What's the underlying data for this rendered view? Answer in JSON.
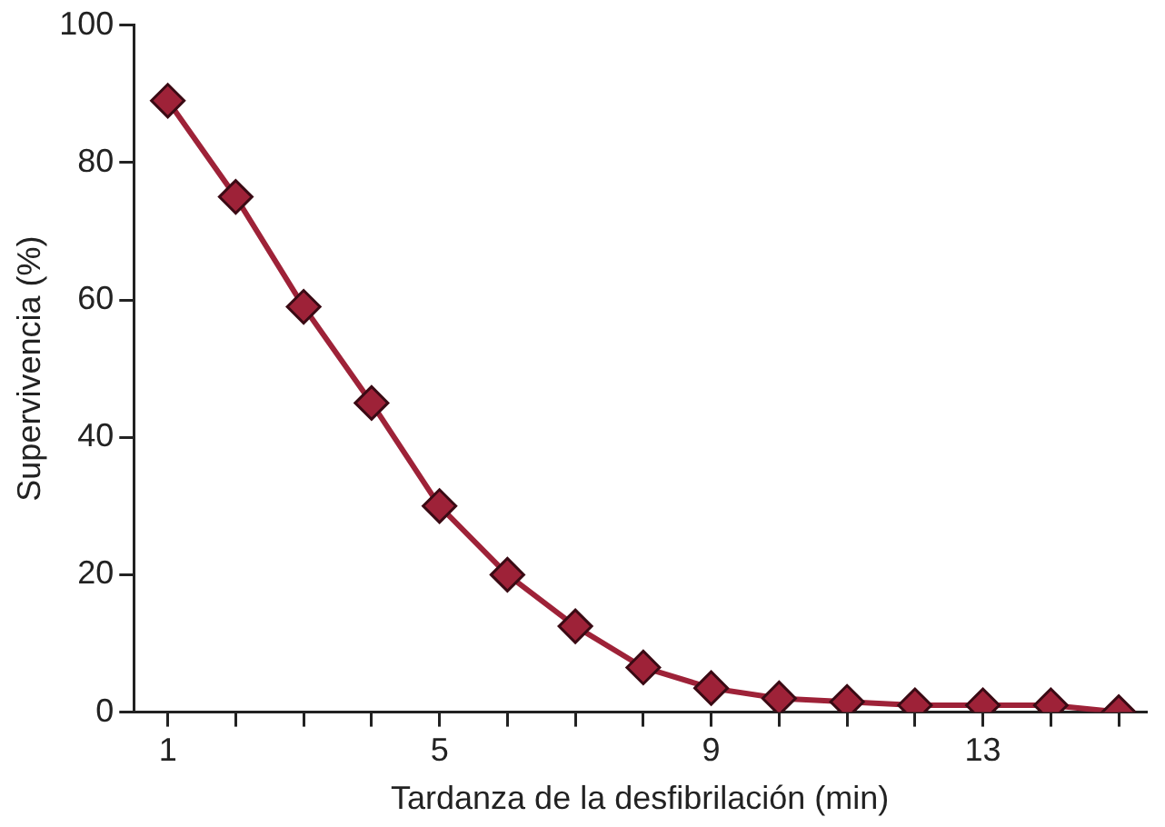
{
  "chart_data": {
    "type": "line",
    "xlabel": "Tardanza de la desfibrilación (min)",
    "ylabel": "Supervivencia (%)",
    "x": [
      1,
      2,
      3,
      4,
      5,
      6,
      7,
      8,
      9,
      10,
      11,
      12,
      13,
      14,
      15
    ],
    "series": [
      {
        "color": "#9e2238",
        "values": [
          89,
          75,
          59,
          45,
          30,
          20,
          12.5,
          6.5,
          3.5,
          2,
          1.5,
          1,
          1,
          1,
          0
        ]
      }
    ],
    "xlim": [
      0.5,
      15.4
    ],
    "xticks": [
      1,
      {
        "value": 2,
        "label": null
      },
      {
        "value": 3,
        "label": null
      },
      {
        "value": 4,
        "label": null
      },
      5,
      {
        "value": 6,
        "label": null
      },
      {
        "value": 7,
        "label": null
      },
      {
        "value": 8,
        "label": null
      },
      9,
      {
        "value": 10,
        "label": null
      },
      {
        "value": 11,
        "label": null
      },
      {
        "value": 12,
        "label": null
      },
      13,
      {
        "value": 14,
        "label": null
      },
      {
        "value": 15,
        "label": null
      }
    ],
    "ylim": [
      0,
      100
    ],
    "yticks": [
      0,
      20,
      40,
      60,
      80,
      100
    ],
    "grid": false,
    "legend": false,
    "marker": "diamond",
    "line_style": "solid"
  }
}
